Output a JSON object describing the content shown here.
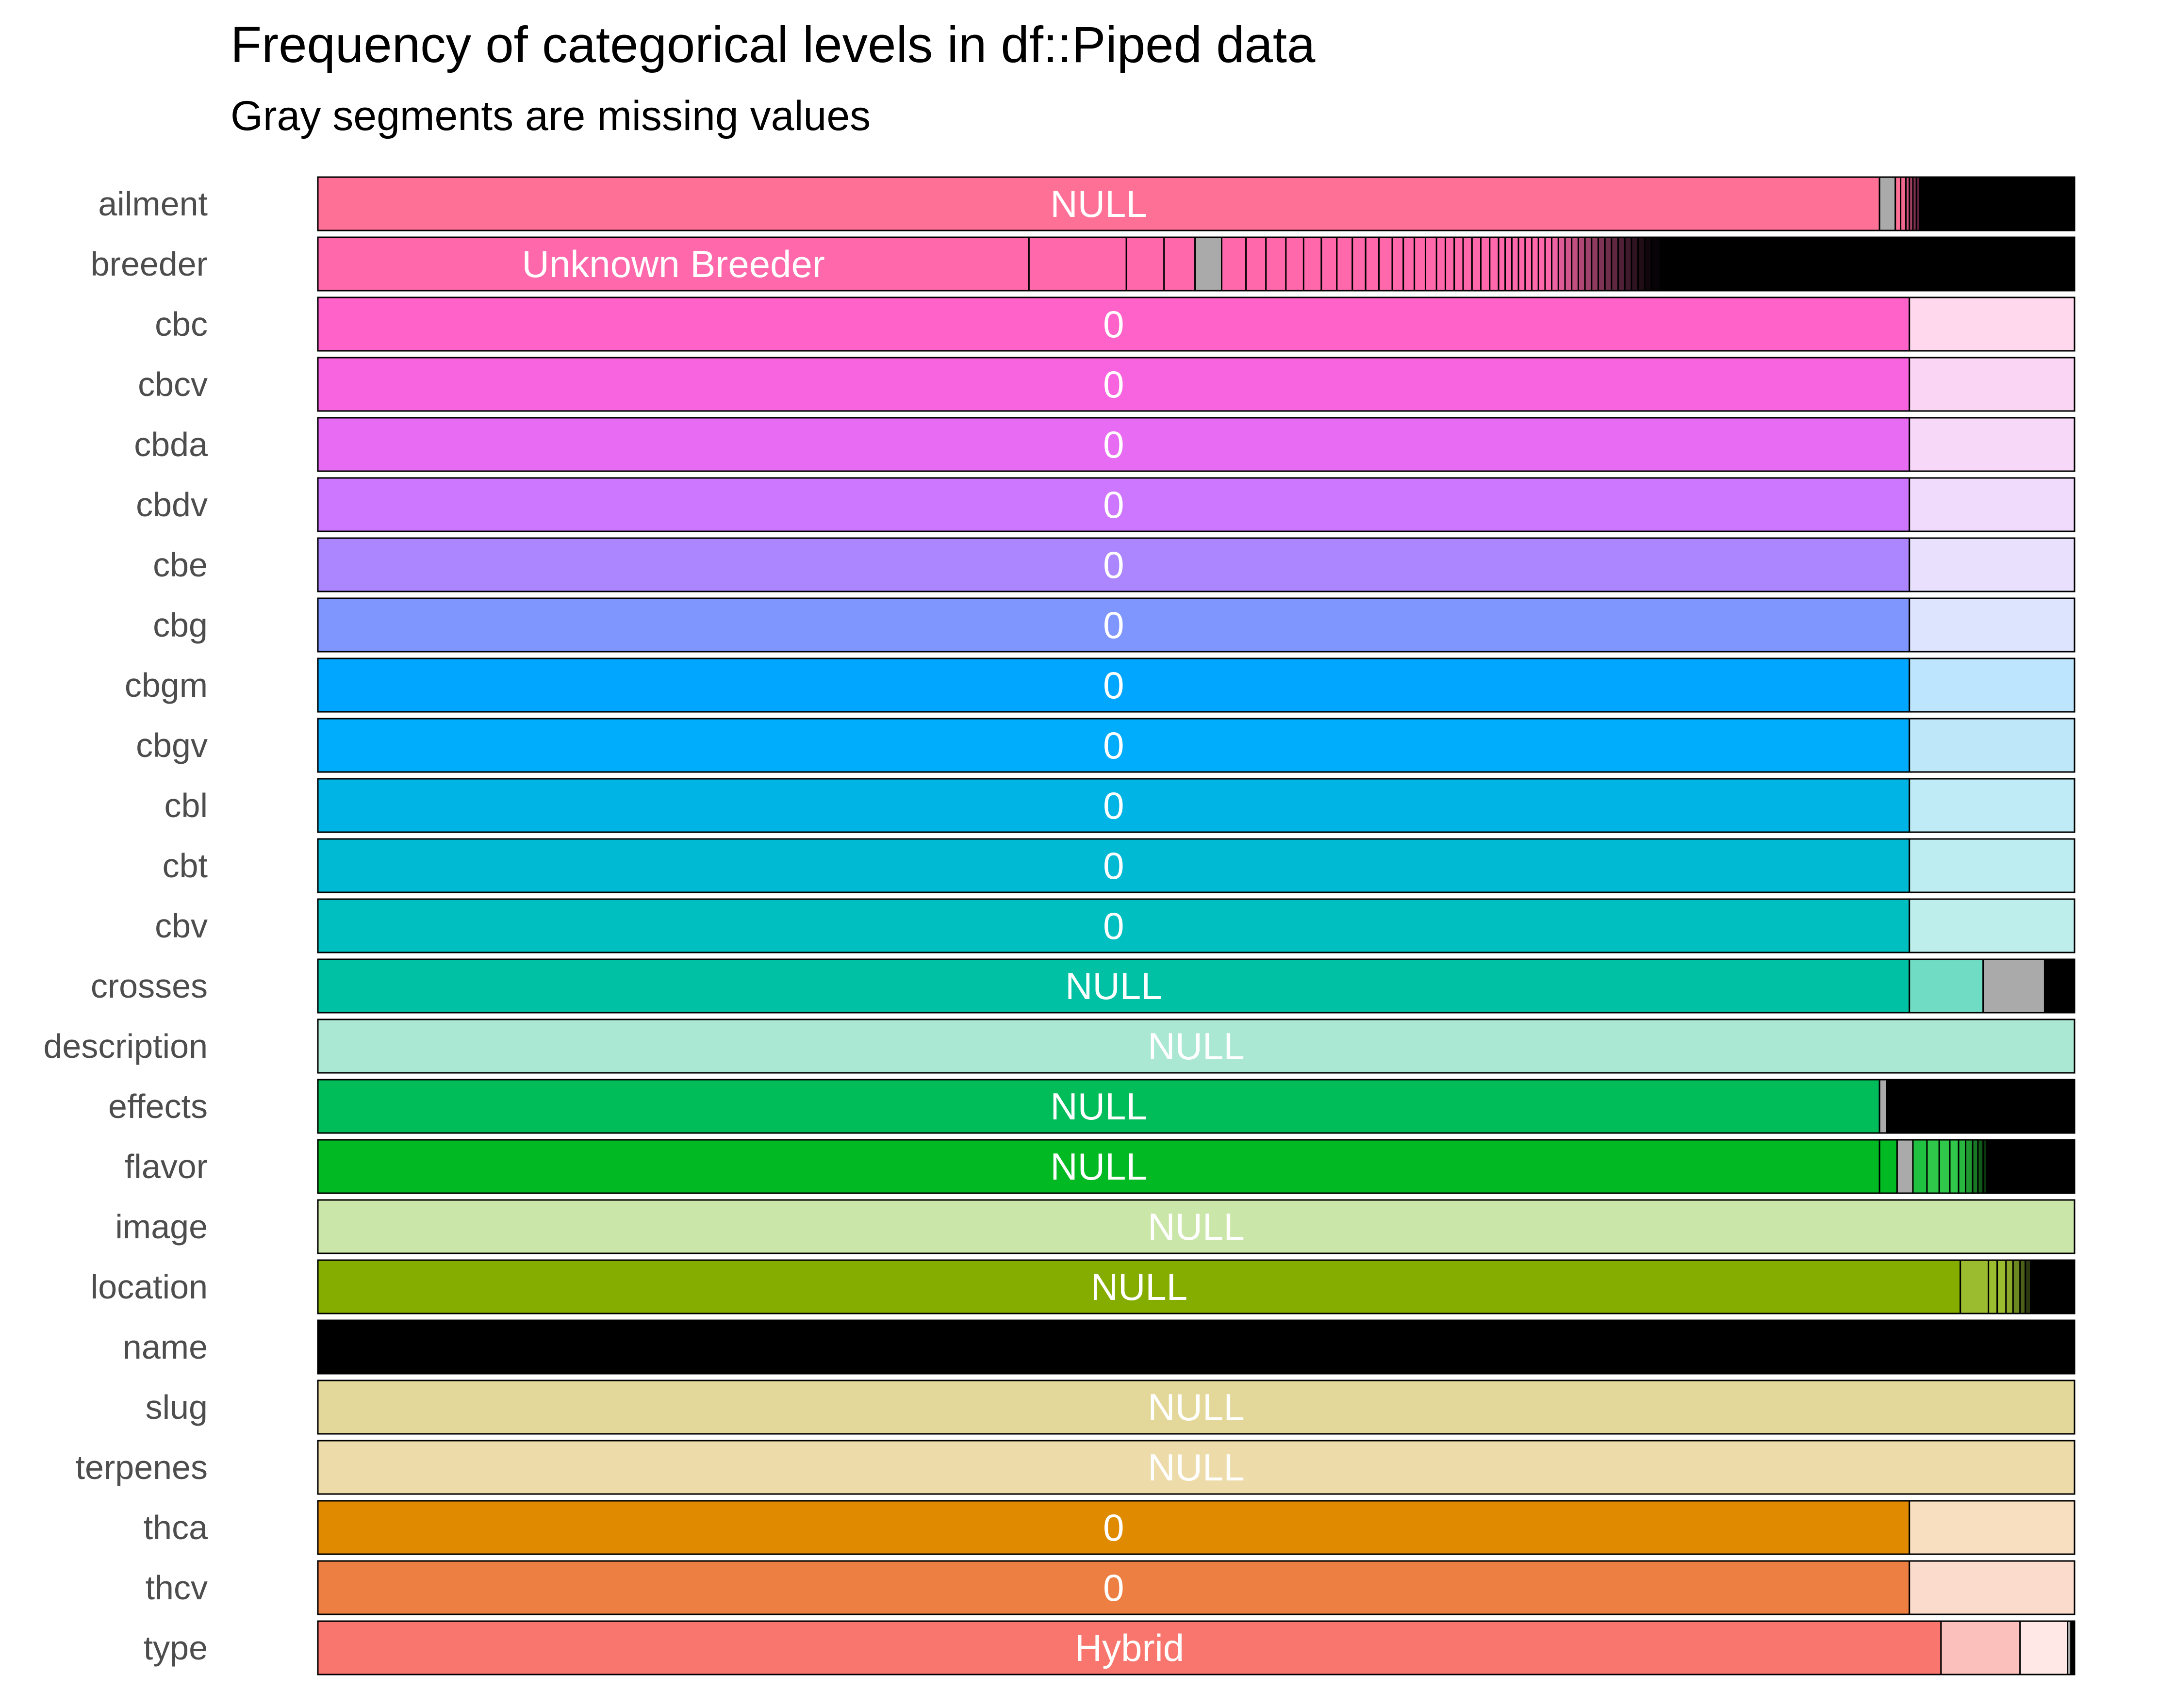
{
  "chart_data": {
    "type": "bar",
    "orientation": "horizontal",
    "stacked": true,
    "normalized": true,
    "title": "Frequency of categorical levels in df::Piped data",
    "subtitle": "Gray segments are missing values",
    "xlim": [
      0,
      1
    ],
    "grid": false,
    "legend": "none",
    "missing_color": "#aaaaaa",
    "rows": [
      {
        "variable": "ailment",
        "label": "NULL",
        "segments": [
          {
            "value": 0.889,
            "color": "#ff7096"
          },
          {
            "value": 0.009,
            "color": "#aaaaaa"
          },
          {
            "value": 0.003,
            "color": "#ff7096"
          },
          {
            "value": 0.003,
            "color": "#f06890"
          },
          {
            "value": 0.002,
            "color": "#c8507a"
          },
          {
            "value": 0.002,
            "color": "#a04060"
          },
          {
            "value": 0.002,
            "color": "#803050"
          },
          {
            "value": 0.002,
            "color": "#602040"
          },
          {
            "value": 0.088,
            "color": "#000000"
          }
        ]
      },
      {
        "variable": "breeder",
        "label": "Unknown Breeder",
        "segments": [
          {
            "value": 0.321,
            "color": "#ff69ac"
          },
          {
            "value": 0.044,
            "color": "#ff69ac"
          },
          {
            "value": 0.017,
            "color": "#ff69ac"
          },
          {
            "value": 0.014,
            "color": "#ff69ac"
          },
          {
            "value": 0.012,
            "color": "#aaaaaa"
          },
          {
            "value": 0.011,
            "color": "#ff69ac"
          },
          {
            "value": 0.009,
            "color": "#ff69ac"
          },
          {
            "value": 0.009,
            "color": "#ff69ac"
          },
          {
            "value": 0.008,
            "color": "#ff69ac"
          },
          {
            "value": 0.008,
            "color": "#ff69ac"
          },
          {
            "value": 0.007,
            "color": "#ff69ac"
          },
          {
            "value": 0.007,
            "color": "#ff69ac"
          },
          {
            "value": 0.006,
            "color": "#ff69ac"
          },
          {
            "value": 0.006,
            "color": "#ff69ac"
          },
          {
            "value": 0.006,
            "color": "#ff69ac"
          },
          {
            "value": 0.005,
            "color": "#ff69ac"
          },
          {
            "value": 0.005,
            "color": "#ff69ac"
          },
          {
            "value": 0.005,
            "color": "#ff69ac"
          },
          {
            "value": 0.005,
            "color": "#ff69ac"
          },
          {
            "value": 0.004,
            "color": "#ff69ac"
          },
          {
            "value": 0.004,
            "color": "#ff69ac"
          },
          {
            "value": 0.004,
            "color": "#ff69ac"
          },
          {
            "value": 0.004,
            "color": "#ff69ac"
          },
          {
            "value": 0.004,
            "color": "#ff69ac"
          },
          {
            "value": 0.004,
            "color": "#ff69ac"
          },
          {
            "value": 0.004,
            "color": "#ff69ac"
          },
          {
            "value": 0.003,
            "color": "#ff69ac"
          },
          {
            "value": 0.003,
            "color": "#ff69ac"
          },
          {
            "value": 0.003,
            "color": "#ff69ac"
          },
          {
            "value": 0.003,
            "color": "#ff69ac"
          },
          {
            "value": 0.003,
            "color": "#ff69ac"
          },
          {
            "value": 0.003,
            "color": "#ff69ac"
          },
          {
            "value": 0.003,
            "color": "#ff69ac"
          },
          {
            "value": 0.003,
            "color": "#ff69ac"
          },
          {
            "value": 0.003,
            "color": "#f063a2"
          },
          {
            "value": 0.003,
            "color": "#e05c96"
          },
          {
            "value": 0.003,
            "color": "#d0568c"
          },
          {
            "value": 0.003,
            "color": "#c04f80"
          },
          {
            "value": 0.003,
            "color": "#b04876"
          },
          {
            "value": 0.003,
            "color": "#a0426c"
          },
          {
            "value": 0.003,
            "color": "#8f3b60"
          },
          {
            "value": 0.003,
            "color": "#7f3456"
          },
          {
            "value": 0.003,
            "color": "#6f2e4c"
          },
          {
            "value": 0.003,
            "color": "#5f2740"
          },
          {
            "value": 0.003,
            "color": "#4f2036"
          },
          {
            "value": 0.003,
            "color": "#3f1a2c"
          },
          {
            "value": 0.003,
            "color": "#2f1320"
          },
          {
            "value": 0.003,
            "color": "#200d16"
          },
          {
            "value": 0.003,
            "color": "#10060b"
          },
          {
            "value": 0.004,
            "color": "#080306"
          },
          {
            "value": 0.187,
            "color": "#000000"
          }
        ]
      },
      {
        "variable": "cbc",
        "label": "0",
        "segments": [
          {
            "value": 0.906,
            "color": "#ff63ca"
          },
          {
            "value": 0.094,
            "color": "#ffd8ee"
          }
        ]
      },
      {
        "variable": "cbcv",
        "label": "0",
        "segments": [
          {
            "value": 0.906,
            "color": "#f863df"
          },
          {
            "value": 0.094,
            "color": "#fbd6f4"
          }
        ]
      },
      {
        "variable": "cbda",
        "label": "0",
        "segments": [
          {
            "value": 0.906,
            "color": "#e76bf3"
          },
          {
            "value": 0.094,
            "color": "#f7d8f9"
          }
        ]
      },
      {
        "variable": "cbdv",
        "label": "0",
        "segments": [
          {
            "value": 0.906,
            "color": "#cd76ff"
          },
          {
            "value": 0.094,
            "color": "#f1dbfd"
          }
        ]
      },
      {
        "variable": "cbe",
        "label": "0",
        "segments": [
          {
            "value": 0.906,
            "color": "#ab86ff"
          },
          {
            "value": 0.094,
            "color": "#e8e0fd"
          }
        ]
      },
      {
        "variable": "cbg",
        "label": "0",
        "segments": [
          {
            "value": 0.906,
            "color": "#7f96ff"
          },
          {
            "value": 0.094,
            "color": "#dde4fd"
          }
        ]
      },
      {
        "variable": "cbgm",
        "label": "0",
        "segments": [
          {
            "value": 0.906,
            "color": "#00a6ff"
          },
          {
            "value": 0.094,
            "color": "#bde5fd"
          }
        ]
      },
      {
        "variable": "cbgv",
        "label": "0",
        "segments": [
          {
            "value": 0.906,
            "color": "#00acfc"
          },
          {
            "value": 0.094,
            "color": "#bee8fa"
          }
        ]
      },
      {
        "variable": "cbl",
        "label": "0",
        "segments": [
          {
            "value": 0.906,
            "color": "#00b5e6"
          },
          {
            "value": 0.094,
            "color": "#beebf6"
          }
        ]
      },
      {
        "variable": "cbt",
        "label": "0",
        "segments": [
          {
            "value": 0.906,
            "color": "#00bad4"
          },
          {
            "value": 0.094,
            "color": "#beedf1"
          }
        ]
      },
      {
        "variable": "cbv",
        "label": "0",
        "segments": [
          {
            "value": 0.906,
            "color": "#00bfc0"
          },
          {
            "value": 0.094,
            "color": "#beeeec"
          }
        ]
      },
      {
        "variable": "crosses",
        "label": "NULL",
        "segments": [
          {
            "value": 0.906,
            "color": "#00c1a3"
          },
          {
            "value": 0.042,
            "color": "#70dcc4"
          },
          {
            "value": 0.035,
            "color": "#aaaaaa"
          },
          {
            "value": 0.017,
            "color": "#000000"
          }
        ]
      },
      {
        "variable": "description",
        "label": "NULL",
        "segments": [
          {
            "value": 1.0,
            "color": "#aae8d4"
          }
        ]
      },
      {
        "variable": "effects",
        "label": "NULL",
        "segments": [
          {
            "value": 0.889,
            "color": "#00bc59"
          },
          {
            "value": 0.004,
            "color": "#aaaaaa"
          },
          {
            "value": 0.107,
            "color": "#000000"
          }
        ]
      },
      {
        "variable": "flavor",
        "label": "NULL",
        "segments": [
          {
            "value": 0.889,
            "color": "#00b923"
          },
          {
            "value": 0.01,
            "color": "#00b923"
          },
          {
            "value": 0.009,
            "color": "#aaaaaa"
          },
          {
            "value": 0.008,
            "color": "#20c040"
          },
          {
            "value": 0.007,
            "color": "#30c84a"
          },
          {
            "value": 0.006,
            "color": "#30c84a"
          },
          {
            "value": 0.005,
            "color": "#30c84a"
          },
          {
            "value": 0.004,
            "color": "#28b840"
          },
          {
            "value": 0.004,
            "color": "#209830"
          },
          {
            "value": 0.003,
            "color": "#187824"
          },
          {
            "value": 0.003,
            "color": "#105818"
          },
          {
            "value": 0.002,
            "color": "#08380c"
          },
          {
            "value": 0.05,
            "color": "#000000"
          }
        ]
      },
      {
        "variable": "image",
        "label": "NULL",
        "segments": [
          {
            "value": 1.0,
            "color": "#cbe6a9"
          }
        ]
      },
      {
        "variable": "location",
        "label": "NULL",
        "segments": [
          {
            "value": 0.935,
            "color": "#85ad00"
          },
          {
            "value": 0.016,
            "color": "#9cbc30"
          },
          {
            "value": 0.005,
            "color": "#9cbc30"
          },
          {
            "value": 0.005,
            "color": "#9cbc30"
          },
          {
            "value": 0.004,
            "color": "#8ca828"
          },
          {
            "value": 0.004,
            "color": "#6c8820"
          },
          {
            "value": 0.003,
            "color": "#4c6018"
          },
          {
            "value": 0.003,
            "color": "#2c3810"
          },
          {
            "value": 0.025,
            "color": "#000000"
          }
        ]
      },
      {
        "variable": "name",
        "label": "",
        "segments": [
          {
            "value": 1.0,
            "color": "#000000"
          }
        ]
      },
      {
        "variable": "slug",
        "label": "NULL",
        "segments": [
          {
            "value": 1.0,
            "color": "#e3d899"
          }
        ]
      },
      {
        "variable": "terpenes",
        "label": "NULL",
        "segments": [
          {
            "value": 1.0,
            "color": "#eddbaa"
          }
        ]
      },
      {
        "variable": "thca",
        "label": "0",
        "segments": [
          {
            "value": 0.906,
            "color": "#e08a00"
          },
          {
            "value": 0.094,
            "color": "#f7dfbf"
          }
        ]
      },
      {
        "variable": "thcv",
        "label": "0",
        "segments": [
          {
            "value": 0.906,
            "color": "#ed7f42"
          },
          {
            "value": 0.094,
            "color": "#fbdbcb"
          }
        ]
      },
      {
        "variable": "type",
        "label": "Hybrid",
        "segments": [
          {
            "value": 0.924,
            "color": "#f8766d"
          },
          {
            "value": 0.045,
            "color": "#fbc0bb"
          },
          {
            "value": 0.027,
            "color": "#ffe8e6"
          },
          {
            "value": 0.002,
            "color": "#aaaaaa"
          },
          {
            "value": 0.002,
            "color": "#000000"
          }
        ]
      }
    ]
  }
}
